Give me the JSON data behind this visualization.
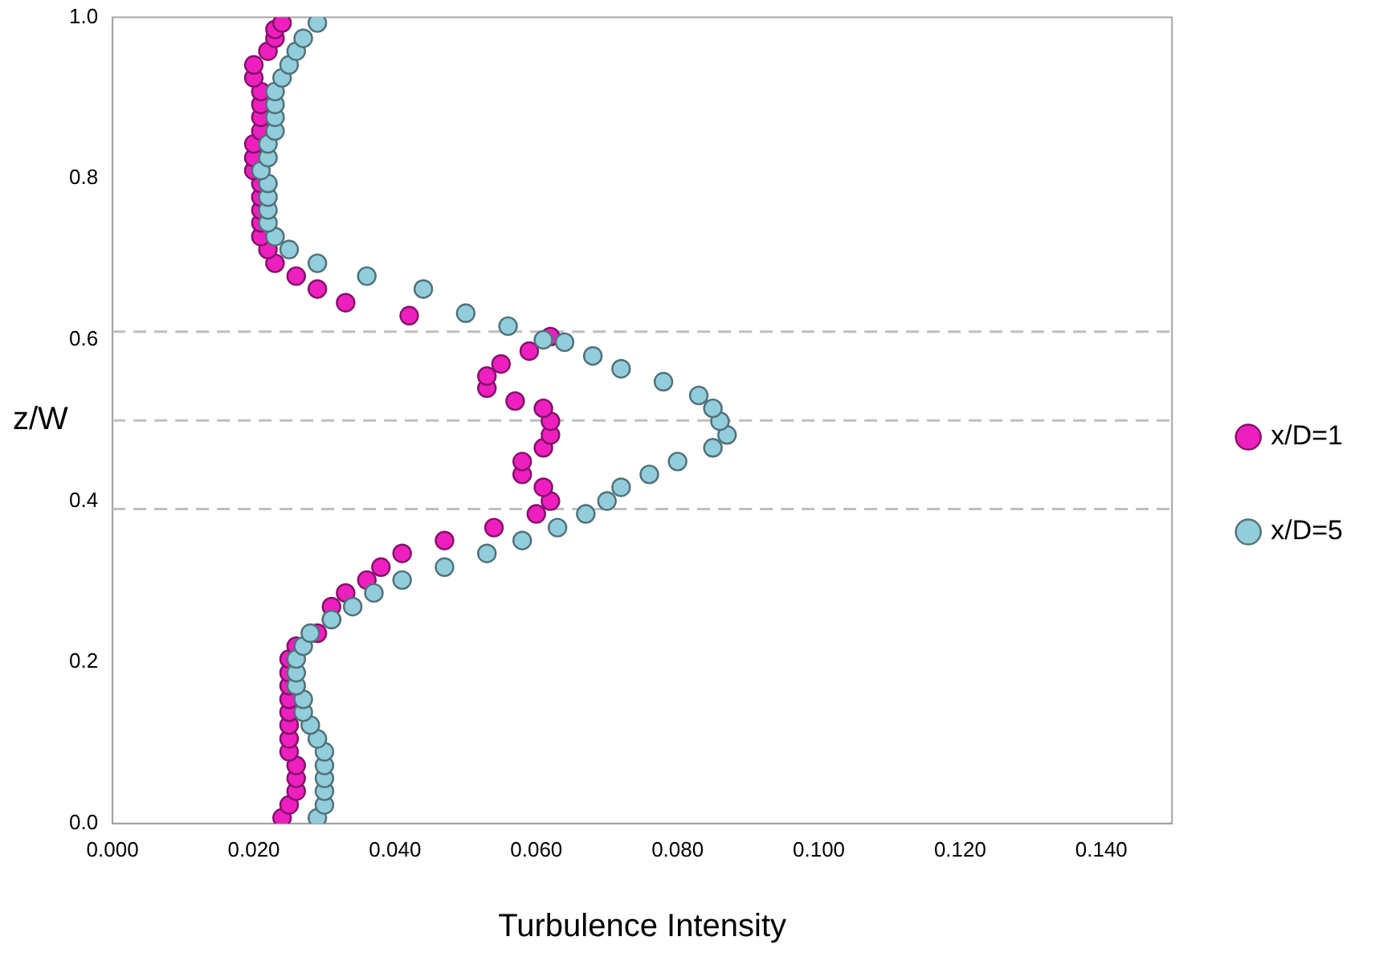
{
  "chart_data": {
    "type": "scatter",
    "xlabel": "Turbulence Intensity",
    "ylabel": "z/W",
    "xlim": [
      0,
      0.15
    ],
    "ylim": [
      0,
      1
    ],
    "xticks": [
      {
        "value": 0,
        "label": "0.000"
      },
      {
        "value": 0.02,
        "label": "0.020"
      },
      {
        "value": 0.04,
        "label": "0.040"
      },
      {
        "value": 0.06,
        "label": "0.060"
      },
      {
        "value": 0.08,
        "label": "0.080"
      },
      {
        "value": 0.1,
        "label": "0.100"
      },
      {
        "value": 0.12,
        "label": "0.120"
      },
      {
        "value": 0.14,
        "label": "0.140"
      }
    ],
    "yticks": [
      {
        "value": 0,
        "label": "0.0"
      },
      {
        "value": 0.2,
        "label": "0.2"
      },
      {
        "value": 0.4,
        "label": "0.4"
      },
      {
        "value": 0.6,
        "label": "0.6"
      },
      {
        "value": 0.8,
        "label": "0.8"
      },
      {
        "value": 1,
        "label": "1.0"
      }
    ],
    "grid": false,
    "legend": "right",
    "marker": "circle",
    "ref_lines": [
      {
        "axis": "y",
        "value": 0.61,
        "color": "#bfbfbf",
        "line_style": "dashed"
      },
      {
        "axis": "y",
        "value": 0.5,
        "color": "#bfbfbf",
        "line_style": "dashed"
      },
      {
        "axis": "y",
        "value": 0.39,
        "color": "#bfbfbf",
        "line_style": "dashed"
      }
    ],
    "series": [
      {
        "name": "x/D=1",
        "color": "#ee1fbf",
        "x": [
          0.024,
          0.025,
          0.026,
          0.026,
          0.026,
          0.025,
          0.025,
          0.025,
          0.025,
          0.025,
          0.025,
          0.025,
          0.025,
          0.026,
          0.029,
          0.031,
          0.031,
          0.033,
          0.036,
          0.038,
          0.041,
          0.047,
          0.054,
          0.06,
          0.062,
          0.061,
          0.058,
          0.058,
          0.061,
          0.062,
          0.062,
          0.061,
          0.057,
          0.053,
          0.053,
          0.055,
          0.059,
          0.062,
          0.042,
          0.033,
          0.029,
          0.026,
          0.023,
          0.022,
          0.021,
          0.021,
          0.021,
          0.021,
          0.021,
          0.02,
          0.02,
          0.02,
          0.021,
          0.021,
          0.021,
          0.021,
          0.02,
          0.02,
          0.022,
          0.023,
          0.023,
          0.024
        ],
        "values": [
          0.007,
          0.023,
          0.04,
          0.056,
          0.072,
          0.089,
          0.105,
          0.122,
          0.138,
          0.154,
          0.171,
          0.187,
          0.204,
          0.22,
          0.236,
          0.253,
          0.269,
          0.286,
          0.302,
          0.318,
          0.335,
          0.351,
          0.367,
          0.384,
          0.4,
          0.417,
          0.433,
          0.449,
          0.466,
          0.482,
          0.499,
          0.515,
          0.524,
          0.54,
          0.555,
          0.57,
          0.586,
          0.604,
          0.63,
          0.646,
          0.663,
          0.679,
          0.695,
          0.712,
          0.728,
          0.745,
          0.761,
          0.777,
          0.794,
          0.81,
          0.826,
          0.843,
          0.859,
          0.876,
          0.892,
          0.908,
          0.925,
          0.941,
          0.958,
          0.974,
          0.985,
          0.993
        ]
      },
      {
        "name": "x/D=5",
        "color": "#92cddc",
        "x": [
          0.029,
          0.03,
          0.03,
          0.03,
          0.03,
          0.03,
          0.029,
          0.028,
          0.027,
          0.027,
          0.026,
          0.026,
          0.026,
          0.027,
          0.028,
          0.031,
          0.034,
          0.037,
          0.041,
          0.047,
          0.053,
          0.058,
          0.063,
          0.067,
          0.07,
          0.072,
          0.076,
          0.08,
          0.085,
          0.087,
          0.086,
          0.085,
          0.083,
          0.078,
          0.072,
          0.068,
          0.064,
          0.061,
          0.056,
          0.05,
          0.044,
          0.036,
          0.029,
          0.025,
          0.023,
          0.022,
          0.022,
          0.022,
          0.022,
          0.021,
          0.022,
          0.022,
          0.023,
          0.023,
          0.023,
          0.023,
          0.024,
          0.025,
          0.026,
          0.027,
          0.029
        ],
        "values": [
          0.007,
          0.023,
          0.04,
          0.056,
          0.072,
          0.089,
          0.105,
          0.122,
          0.138,
          0.154,
          0.171,
          0.187,
          0.204,
          0.22,
          0.236,
          0.253,
          0.269,
          0.286,
          0.302,
          0.318,
          0.335,
          0.351,
          0.367,
          0.384,
          0.4,
          0.417,
          0.433,
          0.449,
          0.466,
          0.482,
          0.499,
          0.515,
          0.531,
          0.548,
          0.564,
          0.58,
          0.597,
          0.6,
          0.617,
          0.633,
          0.663,
          0.679,
          0.695,
          0.712,
          0.728,
          0.745,
          0.761,
          0.777,
          0.794,
          0.81,
          0.826,
          0.843,
          0.859,
          0.876,
          0.892,
          0.908,
          0.925,
          0.941,
          0.958,
          0.974,
          0.993
        ]
      }
    ]
  }
}
